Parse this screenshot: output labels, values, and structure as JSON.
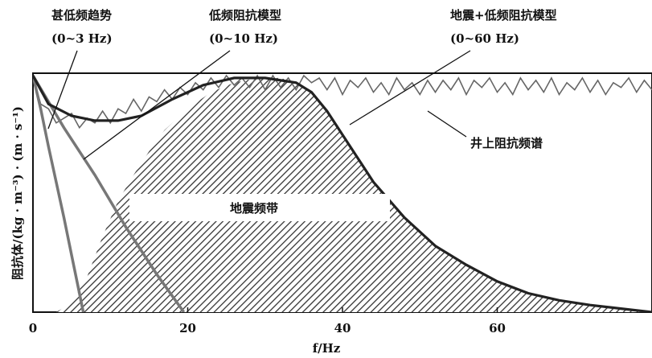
{
  "chart_data": {
    "type": "line",
    "xlabel": "f/Hz",
    "ylabel": "阻抗体/(kg · m⁻³) · (m · s⁻¹)",
    "xlim": [
      0,
      80
    ],
    "x_ticks": [
      "0",
      "20",
      "40",
      "60"
    ],
    "grid": false,
    "annotations": [
      {
        "line1": "甚低频趋势",
        "line2": "(0~3 Hz)"
      },
      {
        "line1": "低频阻抗模型",
        "line2": "(0~10 Hz)"
      },
      {
        "line1": "地震+低频阻抗模型",
        "line2": "(0~60 Hz)"
      },
      {
        "line1": "井上阻抗频谱",
        "line2": ""
      }
    ],
    "band_label": "地震频带",
    "series": [
      {
        "role": "very-low-frequency trend",
        "x": [
          0,
          1,
          2,
          3,
          4,
          5,
          6,
          6.5
        ],
        "y": [
          1.0,
          0.86,
          0.7,
          0.55,
          0.4,
          0.24,
          0.08,
          0.0
        ]
      },
      {
        "role": "low-frequency impedance model",
        "x": [
          0,
          4,
          8,
          12,
          16,
          19.5
        ],
        "y": [
          1.0,
          0.78,
          0.58,
          0.36,
          0.16,
          0.0
        ]
      },
      {
        "role": "seismic + low-frequency impedance model",
        "x": [
          0,
          2,
          5,
          8,
          11,
          14,
          18,
          22,
          26,
          30,
          34,
          36,
          38,
          40,
          44,
          48,
          52,
          56,
          60,
          64,
          68,
          72,
          76,
          80
        ],
        "y": [
          1.0,
          0.88,
          0.83,
          0.81,
          0.81,
          0.83,
          0.9,
          0.96,
          0.99,
          0.99,
          0.97,
          0.93,
          0.85,
          0.75,
          0.55,
          0.4,
          0.28,
          0.2,
          0.13,
          0.08,
          0.05,
          0.03,
          0.015,
          0.0
        ]
      },
      {
        "role": "seismic band (hatched)",
        "x": [
          3,
          5,
          7,
          9,
          11,
          13,
          15,
          17,
          20,
          23,
          26,
          29,
          32,
          34,
          36,
          38,
          40,
          44,
          48,
          52,
          56,
          60,
          64,
          68,
          72,
          76,
          80
        ],
        "y": [
          0.0,
          0.04,
          0.15,
          0.32,
          0.47,
          0.58,
          0.68,
          0.77,
          0.86,
          0.93,
          0.97,
          0.99,
          0.99,
          0.97,
          0.93,
          0.85,
          0.75,
          0.55,
          0.4,
          0.28,
          0.2,
          0.13,
          0.08,
          0.05,
          0.03,
          0.015,
          0.0
        ]
      },
      {
        "role": "well impedance spectrum",
        "x": [
          0,
          1,
          2,
          3,
          4,
          5,
          6,
          7,
          8,
          9,
          10,
          11,
          12,
          13,
          14,
          15,
          16,
          17,
          18,
          19,
          20,
          21,
          22,
          23,
          24,
          25,
          26,
          27,
          28,
          29,
          30,
          31,
          32,
          33,
          34,
          35,
          36,
          37,
          38,
          39,
          40,
          41,
          42,
          43,
          44,
          45,
          46,
          47,
          48,
          49,
          50,
          51,
          52,
          53,
          54,
          55,
          56,
          57,
          58,
          59,
          60,
          61,
          62,
          63,
          64,
          65,
          66,
          67,
          68,
          69,
          70,
          71,
          72,
          73,
          74,
          75,
          76,
          77,
          78,
          79,
          80
        ],
        "y": [
          1.0,
          0.88,
          0.86,
          0.8,
          0.82,
          0.84,
          0.78,
          0.82,
          0.8,
          0.85,
          0.8,
          0.86,
          0.84,
          0.9,
          0.85,
          0.91,
          0.89,
          0.94,
          0.9,
          0.95,
          0.92,
          0.97,
          0.94,
          0.99,
          0.95,
          1.0,
          0.96,
          0.99,
          0.95,
          1.0,
          0.94,
          1.0,
          0.95,
          0.99,
          0.94,
          1.0,
          0.97,
          0.99,
          0.94,
          0.99,
          0.92,
          0.98,
          0.95,
          0.99,
          0.93,
          0.97,
          0.92,
          0.99,
          0.94,
          0.97,
          0.92,
          0.98,
          0.93,
          0.98,
          0.94,
          0.99,
          0.92,
          0.98,
          0.95,
          0.99,
          0.93,
          0.97,
          0.92,
          0.99,
          0.94,
          0.98,
          0.93,
          0.99,
          0.92,
          0.97,
          0.94,
          0.99,
          0.93,
          0.98,
          0.92,
          0.97,
          0.95,
          0.99,
          0.93,
          0.98,
          0.94
        ]
      }
    ]
  }
}
